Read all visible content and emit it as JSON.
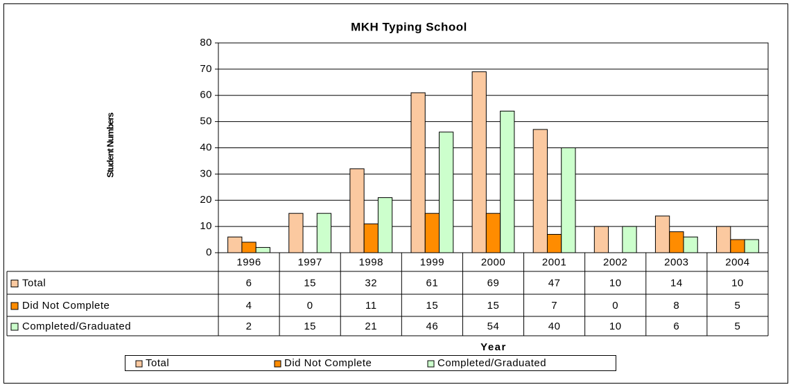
{
  "chart_data": {
    "type": "bar",
    "title": "MKH Typing School",
    "x_label": "Year",
    "y_label": "Student Numbers",
    "categories": [
      "1996",
      "1997",
      "1998",
      "1999",
      "2000",
      "2001",
      "2002",
      "2003",
      "2004"
    ],
    "series": [
      {
        "name": "Total",
        "color": "#fbc9a0",
        "values": [
          6,
          15,
          32,
          61,
          69,
          47,
          10,
          14,
          10
        ]
      },
      {
        "name": "Did Not Complete",
        "color": "#ff8c00",
        "values": [
          4,
          0,
          11,
          15,
          15,
          7,
          0,
          8,
          5
        ]
      },
      {
        "name": "Completed/Graduated",
        "color": "#ccffcc",
        "values": [
          2,
          15,
          21,
          46,
          54,
          40,
          10,
          6,
          5
        ]
      }
    ],
    "ylim": [
      0,
      80
    ],
    "yticks": [
      0,
      10,
      20,
      30,
      40,
      50,
      60,
      70,
      80
    ],
    "grid": true,
    "legend": "bottom"
  }
}
